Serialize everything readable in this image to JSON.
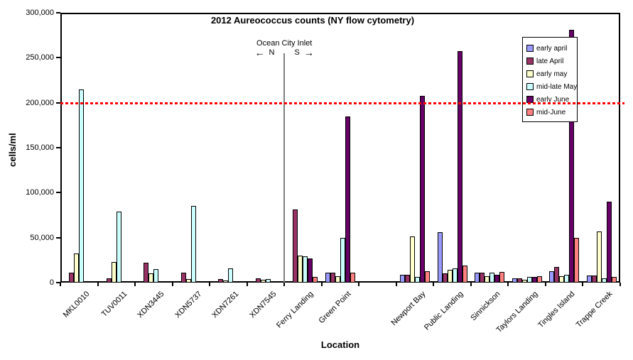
{
  "chart_data": {
    "type": "bar",
    "title": "2012 Aureococcus counts (NY flow cytometry)",
    "xlabel": "Location",
    "ylabel": "cells/ml",
    "ylim": [
      0,
      300000
    ],
    "ytick_step": 50000,
    "ytick_labels": [
      "0",
      "50,000",
      "100,000",
      "150,000",
      "200,000",
      "250,000",
      "300,000"
    ],
    "grid": false,
    "legend_position": "top-right-overlay",
    "categories": [
      "MKL0010",
      "TUV0011",
      "XDN3445",
      "XDN5737",
      "XDN7261",
      "XDN7545",
      "Ferry Landing",
      "Green Point",
      "",
      "Newport Bay",
      "Public Landing",
      "Sinnickson",
      "Taylors Landing",
      "Tingles Island",
      "Trappe Creek"
    ],
    "series": [
      {
        "name": "early april",
        "color": "#9999FF",
        "values": [
          0,
          0,
          0,
          0,
          0,
          0,
          0,
          11000,
          0,
          9000,
          56000,
          11000,
          5000,
          13000,
          8000
        ]
      },
      {
        "name": "late April",
        "color": "#993366",
        "values": [
          11000,
          5000,
          22000,
          11000,
          4000,
          5000,
          81000,
          11000,
          0,
          9000,
          10000,
          11000,
          5000,
          17000,
          8000
        ]
      },
      {
        "name": "early may",
        "color": "#FFFFCC",
        "values": [
          32000,
          23000,
          10000,
          4000,
          2000,
          3000,
          30000,
          7000,
          0,
          51000,
          14000,
          7000,
          3000,
          7000,
          57000
        ]
      },
      {
        "name": "mid-late May",
        "color": "#CCFFFF",
        "values": [
          215000,
          79000,
          15000,
          85000,
          16000,
          4000,
          29000,
          50000,
          0,
          6000,
          16000,
          11000,
          6000,
          9000,
          5000
        ]
      },
      {
        "name": "early June",
        "color": "#660066",
        "values": [
          0,
          0,
          0,
          0,
          0,
          0,
          27000,
          185000,
          0,
          208000,
          257000,
          9000,
          6000,
          281000,
          90000
        ]
      },
      {
        "name": "mid-June",
        "color": "#FF8080",
        "values": [
          0,
          0,
          0,
          0,
          0,
          0,
          6000,
          11000,
          0,
          13000,
          19000,
          12000,
          7000,
          50000,
          6000
        ]
      }
    ],
    "reference_line": {
      "value": 200000,
      "color": "#FF0000",
      "style": "dashed"
    },
    "divider_line": {
      "after_category_index": 6,
      "color": "#808080"
    },
    "annotation": {
      "title": "Ocean City Inlet",
      "left_arrow": "←",
      "north": "N",
      "south": "S",
      "right_arrow": "→"
    }
  }
}
